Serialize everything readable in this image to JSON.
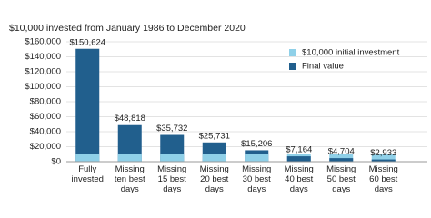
{
  "chart_data": {
    "type": "bar",
    "title": "$10,000 invested from January 1986 to December 2020",
    "categories": [
      "Fully invested",
      "Missing ten best days",
      "Missing 15 best days",
      "Missing 20 best days",
      "Missing 30 best days",
      "Missing 40 best days",
      "Missing 50 best days",
      "Missing 60 best days"
    ],
    "series": [
      {
        "name": "$10,000 initial investment",
        "color": "#8fd0e8",
        "values": [
          10000,
          10000,
          10000,
          10000,
          10000,
          10000,
          10000,
          10000
        ]
      },
      {
        "name": "Final value",
        "color": "#215f8d",
        "values": [
          150624,
          48818,
          35732,
          25731,
          15206,
          7164,
          4704,
          2933
        ],
        "value_labels": [
          "$150,624",
          "$48,818",
          "$35,732",
          "$25,731",
          "$15,206",
          "$7,164",
          "$4,704",
          "$2,933"
        ]
      }
    ],
    "ylim": [
      0,
      160000
    ],
    "yticks": [
      {
        "value": 0,
        "label": "$0"
      },
      {
        "value": 20000,
        "label": "$20,000"
      },
      {
        "value": 40000,
        "label": "$40,000"
      },
      {
        "value": 60000,
        "label": "$60,000"
      },
      {
        "value": 80000,
        "label": "$80,000"
      },
      {
        "value": 100000,
        "label": "$100,000"
      },
      {
        "value": 120000,
        "label": "$120,000"
      },
      {
        "value": 140000,
        "label": "$140,000"
      },
      {
        "value": 160000,
        "label": "$160,000"
      }
    ],
    "grid": true,
    "legend": "top-right"
  }
}
